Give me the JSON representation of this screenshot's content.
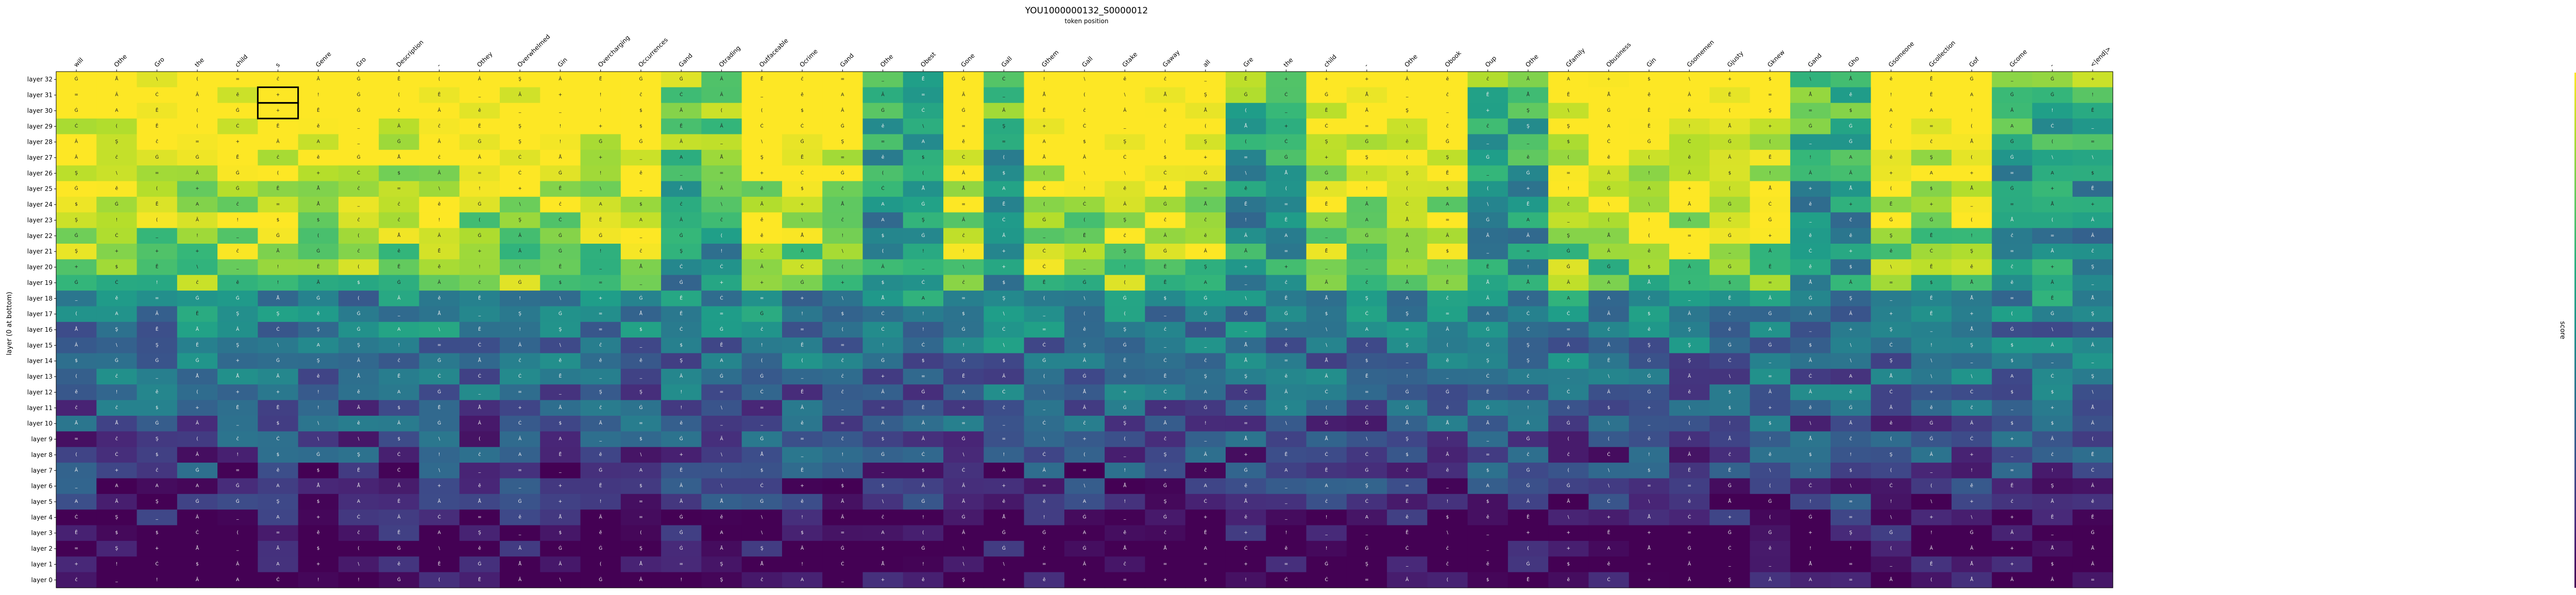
{
  "chart_data": {
    "type": "heatmap",
    "title": "YOU1000000132_S0000012",
    "subtitle": "token position",
    "ylabel": "layer (0 at bottom)",
    "colorbar_label": "score",
    "colormap": "viridis",
    "vmin": 0,
    "vmax": 1,
    "colorbar_ticks": [
      "0.2",
      "0.4",
      "0.6",
      "0.8",
      "1.0"
    ],
    "colorbar_tick_values": [
      0.2,
      0.4,
      0.6,
      0.8,
      1.0
    ],
    "x_labels": [
      "will",
      "Othe",
      "Gro",
      "the",
      "child",
      "s",
      "Genre",
      "Gro",
      "Description",
      "-",
      "Othey",
      "Overwhelmed",
      "Gin",
      "Overcharging",
      "Occurrences",
      "Gand",
      "Otrading",
      "Outfaceable",
      "Ocrime",
      "Gand",
      "Othe",
      "Obest",
      "Gone",
      "Gall",
      "Gthem",
      "Gall",
      "Gtake",
      "Gaway",
      "all",
      "Gre",
      "the",
      "child",
      "-",
      "Othe",
      "Obook",
      "Oup",
      "Othe",
      "Gfamily",
      "Obusiness",
      "Gin",
      "Gsomemen",
      "Gjusty",
      "Gknew",
      "Gand",
      "Gho",
      "Gsomeone",
      "Gcollection",
      "Gof",
      "Gcome",
      "-",
      "<|end|>"
    ],
    "y_labels": [
      "layer 32",
      "layer 31",
      "layer 30",
      "layer 29",
      "layer 28",
      "layer 27",
      "layer 26",
      "layer 25",
      "layer 24",
      "layer 23",
      "layer 22",
      "layer 21",
      "layer 20",
      "layer 19",
      "layer 18",
      "layer 17",
      "layer 16",
      "layer 15",
      "layer 14",
      "layer 13",
      "layer 12",
      "layer 11",
      "layer 10",
      "layer 9",
      "layer 8",
      "layer 7",
      "layer 6",
      "layer 5",
      "layer 4",
      "layer 3",
      "layer 2",
      "layer 1",
      "layer 0"
    ],
    "cell_glyphs": [
      "Ġ",
      "Â",
      "(",
      "\\",
      "=",
      "Ā",
      "Å",
      "ĉ",
      "+",
      "Ċ",
      "_",
      "Ġ",
      "ě",
      "!",
      "A",
      "Ē",
      "Ş",
      "$"
    ],
    "highlighted_cells": [
      {
        "layer": 31,
        "col": 5
      },
      {
        "layer": 30,
        "col": 5
      }
    ],
    "values": []
  }
}
